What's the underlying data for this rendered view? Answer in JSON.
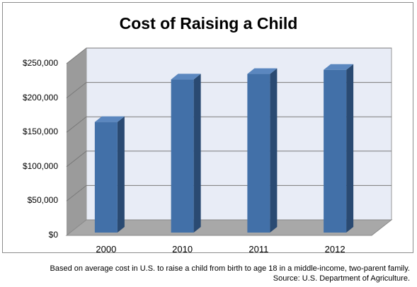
{
  "chart_data": {
    "type": "bar",
    "title": "Cost of Raising a Child",
    "categories": [
      "2000",
      "2010",
      "2011",
      "2012"
    ],
    "values": [
      165000,
      227000,
      235000,
      241000
    ],
    "ylim": [
      0,
      250000
    ],
    "yticks": [
      0,
      50000,
      100000,
      150000,
      200000,
      250000
    ],
    "ytick_labels": [
      "$0",
      "$50,000",
      "$100,000",
      "$150,000",
      "$200,000",
      "$250,000"
    ],
    "grid": true,
    "legend": "none",
    "style": "3d-column"
  },
  "footnote": {
    "line1": "Based on average cost in U.S. to raise a child from birth to age 18 in a middle-income, two-parent family.",
    "line2": "Source: U.S. Department of Agriculture."
  },
  "colors": {
    "bar_front": "#4270a8",
    "bar_side": "#2a4a72",
    "bar_top": "#5b87bf",
    "wall": "#e8ecf6",
    "side_wall": "#9b9b9b",
    "floor": "#a8a8a8",
    "grid": "#7a7a7a"
  }
}
